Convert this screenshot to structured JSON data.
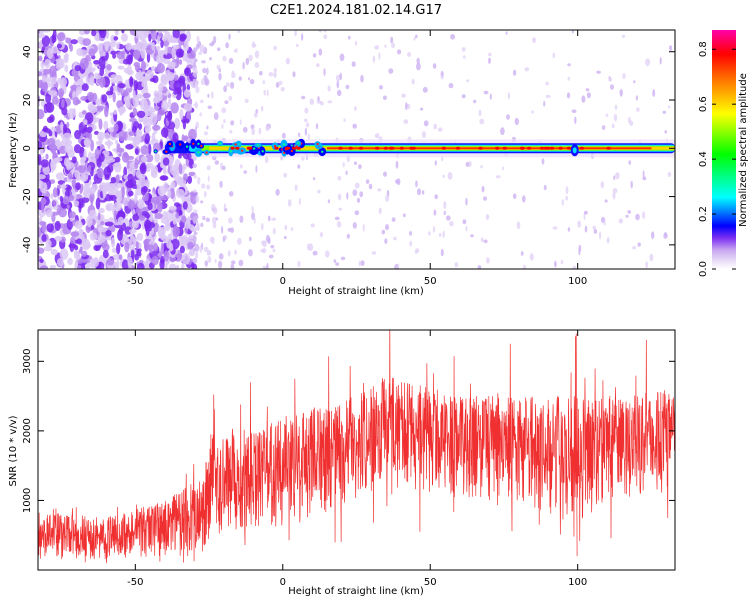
{
  "title": "C2E1.2024.181.02.14.G17",
  "chart_data": [
    {
      "type": "heatmap",
      "xlabel": "Height of straight line (km)",
      "ylabel": "Frequency (Hz)",
      "xlim": [
        -83,
        133
      ],
      "ylim": [
        -50,
        49
      ],
      "x_ticks": [
        -50,
        0,
        50,
        100
      ],
      "y_ticks": [
        -40,
        -20,
        0,
        20,
        40
      ],
      "colorbar": {
        "label": "Normalized spectral amplitude",
        "range": [
          0.0,
          0.87
        ],
        "ticks": [
          0.0,
          0.2,
          0.4,
          0.6,
          0.8
        ],
        "colors": [
          "#ffffff",
          "#ece1f8",
          "#c8a6f0",
          "#7b2ff2",
          "#0000ff",
          "#00ffff",
          "#00ff00",
          "#ffff00",
          "#ff8000",
          "#ff0000",
          "#ff00aa"
        ]
      },
      "ridge": {
        "frequency_hz": 0,
        "x_range": [
          -83,
          133
        ],
        "noise_below_km": -30
      }
    },
    {
      "type": "line",
      "xlabel": "Height of straight line (km)",
      "ylabel": "SNR (10 * v/v)",
      "xlim": [
        -83,
        133
      ],
      "ylim": [
        0,
        3450
      ],
      "x_ticks": [
        -50,
        0,
        50,
        100
      ],
      "y_ticks": [
        1000,
        2000,
        3000
      ],
      "series": [
        {
          "color": "#f03030",
          "envelope": [
            {
              "x": -83,
              "low": 150,
              "high": 850
            },
            {
              "x": -60,
              "low": 150,
              "high": 750
            },
            {
              "x": -40,
              "low": 180,
              "high": 1000
            },
            {
              "x": -27,
              "low": 200,
              "high": 1350
            },
            {
              "x": -24,
              "low": 500,
              "high": 2100
            },
            {
              "x": -10,
              "low": 500,
              "high": 2000
            },
            {
              "x": 5,
              "low": 600,
              "high": 2300
            },
            {
              "x": 20,
              "low": 900,
              "high": 2400
            },
            {
              "x": 35,
              "low": 1200,
              "high": 2800
            },
            {
              "x": 60,
              "low": 1000,
              "high": 2500
            },
            {
              "x": 80,
              "low": 1000,
              "high": 2500
            },
            {
              "x": 99,
              "low": 600,
              "high": 2500
            },
            {
              "x": 110,
              "low": 1000,
              "high": 2500
            },
            {
              "x": 133,
              "low": 1100,
              "high": 2600
            }
          ]
        }
      ]
    }
  ]
}
